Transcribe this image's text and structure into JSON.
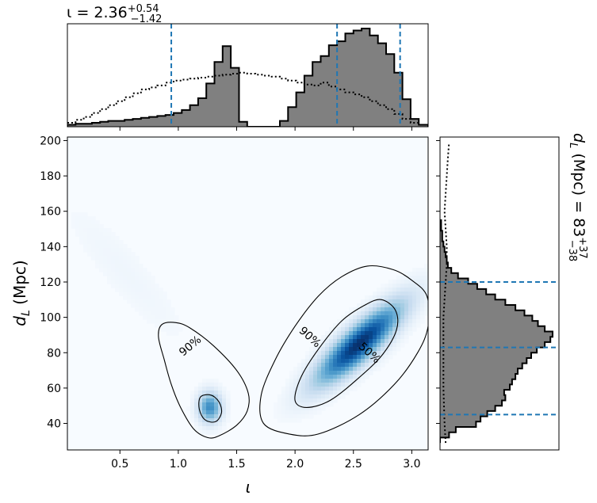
{
  "chart_data": [
    {
      "type": "area",
      "panel": "top-marginal",
      "title": {
        "base": "ι = 2.36",
        "sup": "+0.54",
        "sub": "−1.42"
      },
      "xlim": [
        0.05,
        3.14
      ],
      "x_bin_edges": [
        0.05,
        0.12,
        0.19,
        0.26,
        0.33,
        0.4,
        0.47,
        0.54,
        0.61,
        0.68,
        0.75,
        0.82,
        0.89,
        0.96,
        1.03,
        1.1,
        1.17,
        1.24,
        1.31,
        1.38,
        1.45,
        1.52,
        1.59,
        1.66,
        1.73,
        1.8,
        1.87,
        1.94,
        2.01,
        2.08,
        2.15,
        2.22,
        2.29,
        2.36,
        2.43,
        2.5,
        2.57,
        2.64,
        2.71,
        2.78,
        2.85,
        2.92,
        2.99,
        3.06,
        3.14
      ],
      "filled_counts": [
        0.02,
        0.03,
        0.03,
        0.04,
        0.05,
        0.06,
        0.06,
        0.07,
        0.08,
        0.09,
        0.1,
        0.11,
        0.12,
        0.14,
        0.17,
        0.22,
        0.29,
        0.44,
        0.66,
        0.82,
        0.6,
        0.05,
        0.0,
        0.0,
        0.0,
        0.0,
        0.06,
        0.2,
        0.35,
        0.52,
        0.66,
        0.72,
        0.83,
        0.87,
        0.95,
        0.98,
        1.0,
        0.93,
        0.85,
        0.74,
        0.55,
        0.28,
        0.08,
        0.02
      ],
      "dotted_counts": [
        0.04,
        0.07,
        0.1,
        0.14,
        0.18,
        0.22,
        0.26,
        0.3,
        0.34,
        0.38,
        0.4,
        0.42,
        0.45,
        0.47,
        0.48,
        0.49,
        0.5,
        0.51,
        0.52,
        0.53,
        0.54,
        0.55,
        0.54,
        0.53,
        0.52,
        0.51,
        0.49,
        0.47,
        0.45,
        0.43,
        0.42,
        0.45,
        0.41,
        0.38,
        0.35,
        0.33,
        0.3,
        0.26,
        0.22,
        0.18,
        0.13,
        0.08,
        0.04,
        0.02
      ],
      "quantile_lines": [
        0.94,
        2.36,
        2.9
      ],
      "colors": {
        "fill": "#808080",
        "edge": "#000000",
        "quantile": "#1f77b4"
      }
    },
    {
      "type": "heatmap",
      "panel": "joint-density",
      "xlabel": "ι",
      "ylabel": {
        "base": "d",
        "sub": "L",
        "rest": " (Mpc)"
      },
      "xlim": [
        0.05,
        3.14
      ],
      "ylim": [
        25,
        202
      ],
      "x_ticks": [
        "0.5",
        "1.0",
        "1.5",
        "2.0",
        "2.5",
        "3.0"
      ],
      "x_tick_values": [
        0.5,
        1.0,
        1.5,
        2.0,
        2.5,
        3.0
      ],
      "y_ticks": [
        "40",
        "60",
        "80",
        "100",
        "120",
        "140",
        "160",
        "180",
        "200"
      ],
      "y_tick_values": [
        40,
        60,
        80,
        100,
        120,
        140,
        160,
        180,
        200
      ],
      "contour_labels": [
        {
          "text": "90%",
          "x": 1.1,
          "y": 84,
          "rotation_deg": 40
        },
        {
          "text": "90%",
          "x": 2.13,
          "y": 89,
          "rotation_deg": -42
        },
        {
          "text": "50%",
          "x": 2.64,
          "y": 80,
          "rotation_deg": -42
        }
      ],
      "contours": [
        {
          "level": "90%",
          "points": [
            [
              0.83,
              89
            ],
            [
              0.86,
              96
            ],
            [
              0.98,
              97
            ],
            [
              1.1,
              94
            ],
            [
              1.3,
              84
            ],
            [
              1.5,
              70
            ],
            [
              1.6,
              57
            ],
            [
              1.59,
              47
            ],
            [
              1.5,
              39
            ],
            [
              1.35,
              33
            ],
            [
              1.25,
              32
            ],
            [
              1.13,
              37
            ],
            [
              1.02,
              49
            ],
            [
              0.94,
              62
            ],
            [
              0.88,
              76
            ],
            [
              0.83,
              89
            ]
          ]
        },
        {
          "level": "50%",
          "points": [
            [
              1.19,
              55
            ],
            [
              1.28,
              56
            ],
            [
              1.35,
              52
            ],
            [
              1.37,
              46
            ],
            [
              1.32,
              41
            ],
            [
              1.23,
              42
            ],
            [
              1.18,
              48
            ],
            [
              1.19,
              55
            ]
          ]
        },
        {
          "level": "90%",
          "points": [
            [
              1.73,
              40
            ],
            [
              1.95,
              34
            ],
            [
              2.2,
              34
            ],
            [
              2.55,
              45
            ],
            [
              2.85,
              62
            ],
            [
              3.05,
              80
            ],
            [
              3.14,
              95
            ],
            [
              3.13,
              112
            ],
            [
              3.0,
              121
            ],
            [
              2.84,
              127
            ],
            [
              2.62,
              129
            ],
            [
              2.4,
              123
            ],
            [
              2.2,
              112
            ],
            [
              2.0,
              95
            ],
            [
              1.83,
              76
            ],
            [
              1.71,
              56
            ],
            [
              1.73,
              40
            ]
          ]
        },
        {
          "level": "50%",
          "points": [
            [
              2.0,
              53
            ],
            [
              2.1,
              49
            ],
            [
              2.3,
              53
            ],
            [
              2.55,
              66
            ],
            [
              2.75,
              79
            ],
            [
              2.87,
              93
            ],
            [
              2.86,
              104
            ],
            [
              2.74,
              110
            ],
            [
              2.6,
              107
            ],
            [
              2.4,
              98
            ],
            [
              2.2,
              82
            ],
            [
              2.05,
              66
            ],
            [
              2.0,
              53
            ]
          ]
        }
      ],
      "density_peaks": [
        {
          "x": 2.55,
          "y": 85,
          "sx": 0.26,
          "sy": 16,
          "rho": 0.85,
          "weight": 1.0
        },
        {
          "x": 1.27,
          "y": 49,
          "sx": 0.07,
          "sy": 6,
          "rho": 0.0,
          "weight": 0.65
        },
        {
          "x": 0.55,
          "y": 125,
          "sx": 0.4,
          "sy": 30,
          "rho": -0.9,
          "weight": 0.04
        }
      ],
      "colors": {
        "contour": "#000000"
      }
    },
    {
      "type": "area",
      "panel": "right-marginal",
      "title": {
        "base": "d",
        "sub": "L",
        "rest": " (Mpc) = 83",
        "sup": "+37",
        "sub2": "−38"
      },
      "ylim": [
        25,
        202
      ],
      "y_bin_edges": [
        29,
        32,
        35,
        38,
        41,
        44,
        47,
        50,
        53,
        56,
        59,
        62,
        65,
        68,
        71,
        74,
        77,
        80,
        83,
        86,
        89,
        92,
        95,
        98,
        101,
        104,
        107,
        110,
        113,
        116,
        119,
        122,
        125,
        128,
        131,
        134,
        137,
        140,
        143,
        146,
        149,
        152,
        155
      ],
      "filled_counts": [
        0.0,
        0.08,
        0.14,
        0.32,
        0.36,
        0.42,
        0.49,
        0.55,
        0.58,
        0.57,
        0.62,
        0.64,
        0.67,
        0.69,
        0.73,
        0.77,
        0.81,
        0.86,
        0.93,
        0.98,
        1.0,
        0.93,
        0.87,
        0.82,
        0.75,
        0.67,
        0.58,
        0.49,
        0.41,
        0.33,
        0.25,
        0.16,
        0.1,
        0.07,
        0.06,
        0.05,
        0.04,
        0.03,
        0.02,
        0.02,
        0.01,
        0.01
      ],
      "dotted_points": [
        [
          0.05,
          29
        ],
        [
          0.04,
          40
        ],
        [
          0.03,
          60
        ],
        [
          0.03,
          80
        ],
        [
          0.03,
          100
        ],
        [
          0.04,
          110
        ],
        [
          0.05,
          120
        ],
        [
          0.06,
          130
        ],
        [
          0.06,
          140
        ],
        [
          0.05,
          150
        ],
        [
          0.04,
          160
        ],
        [
          0.05,
          170
        ],
        [
          0.06,
          180
        ],
        [
          0.07,
          190
        ],
        [
          0.08,
          199
        ]
      ],
      "quantile_lines": [
        45,
        83,
        120
      ],
      "colors": {
        "fill": "#808080",
        "edge": "#000000",
        "quantile": "#1f77b4"
      }
    }
  ]
}
